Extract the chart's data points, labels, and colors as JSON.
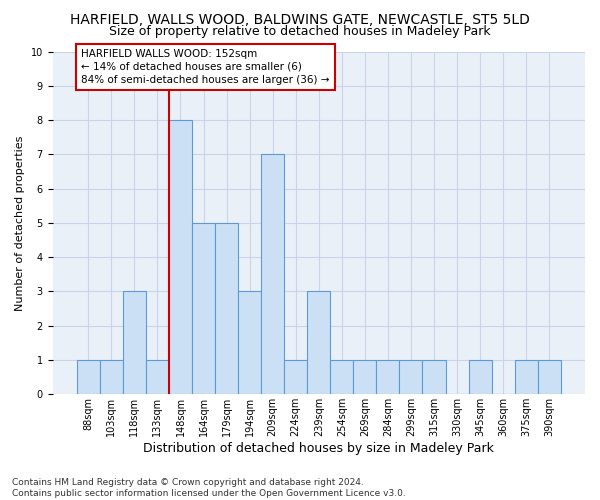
{
  "title": "HARFIELD, WALLS WOOD, BALDWINS GATE, NEWCASTLE, ST5 5LD",
  "subtitle": "Size of property relative to detached houses in Madeley Park",
  "xlabel": "Distribution of detached houses by size in Madeley Park",
  "ylabel": "Number of detached properties",
  "categories": [
    "88sqm",
    "103sqm",
    "118sqm",
    "133sqm",
    "148sqm",
    "164sqm",
    "179sqm",
    "194sqm",
    "209sqm",
    "224sqm",
    "239sqm",
    "254sqm",
    "269sqm",
    "284sqm",
    "299sqm",
    "315sqm",
    "330sqm",
    "345sqm",
    "360sqm",
    "375sqm",
    "390sqm"
  ],
  "values": [
    1,
    1,
    3,
    1,
    8,
    5,
    5,
    3,
    7,
    1,
    3,
    1,
    1,
    1,
    1,
    1,
    0,
    1,
    0,
    1,
    1
  ],
  "bar_color": "#cce0f5",
  "bar_edge_color": "#5b9bd5",
  "reference_line_color": "#cc0000",
  "reference_line_index": 4,
  "annotation_text": "HARFIELD WALLS WOOD: 152sqm\n← 14% of detached houses are smaller (6)\n84% of semi-detached houses are larger (36) →",
  "annotation_box_color": "#cc0000",
  "ylim": [
    0,
    10
  ],
  "yticks": [
    0,
    1,
    2,
    3,
    4,
    5,
    6,
    7,
    8,
    9,
    10
  ],
  "grid_color": "#c8d4e8",
  "bg_color": "#eaf0f8",
  "footnote": "Contains HM Land Registry data © Crown copyright and database right 2024.\nContains public sector information licensed under the Open Government Licence v3.0.",
  "title_fontsize": 10,
  "subtitle_fontsize": 9,
  "xlabel_fontsize": 9,
  "ylabel_fontsize": 8,
  "tick_fontsize": 7,
  "annotation_fontsize": 7.5,
  "footnote_fontsize": 6.5
}
